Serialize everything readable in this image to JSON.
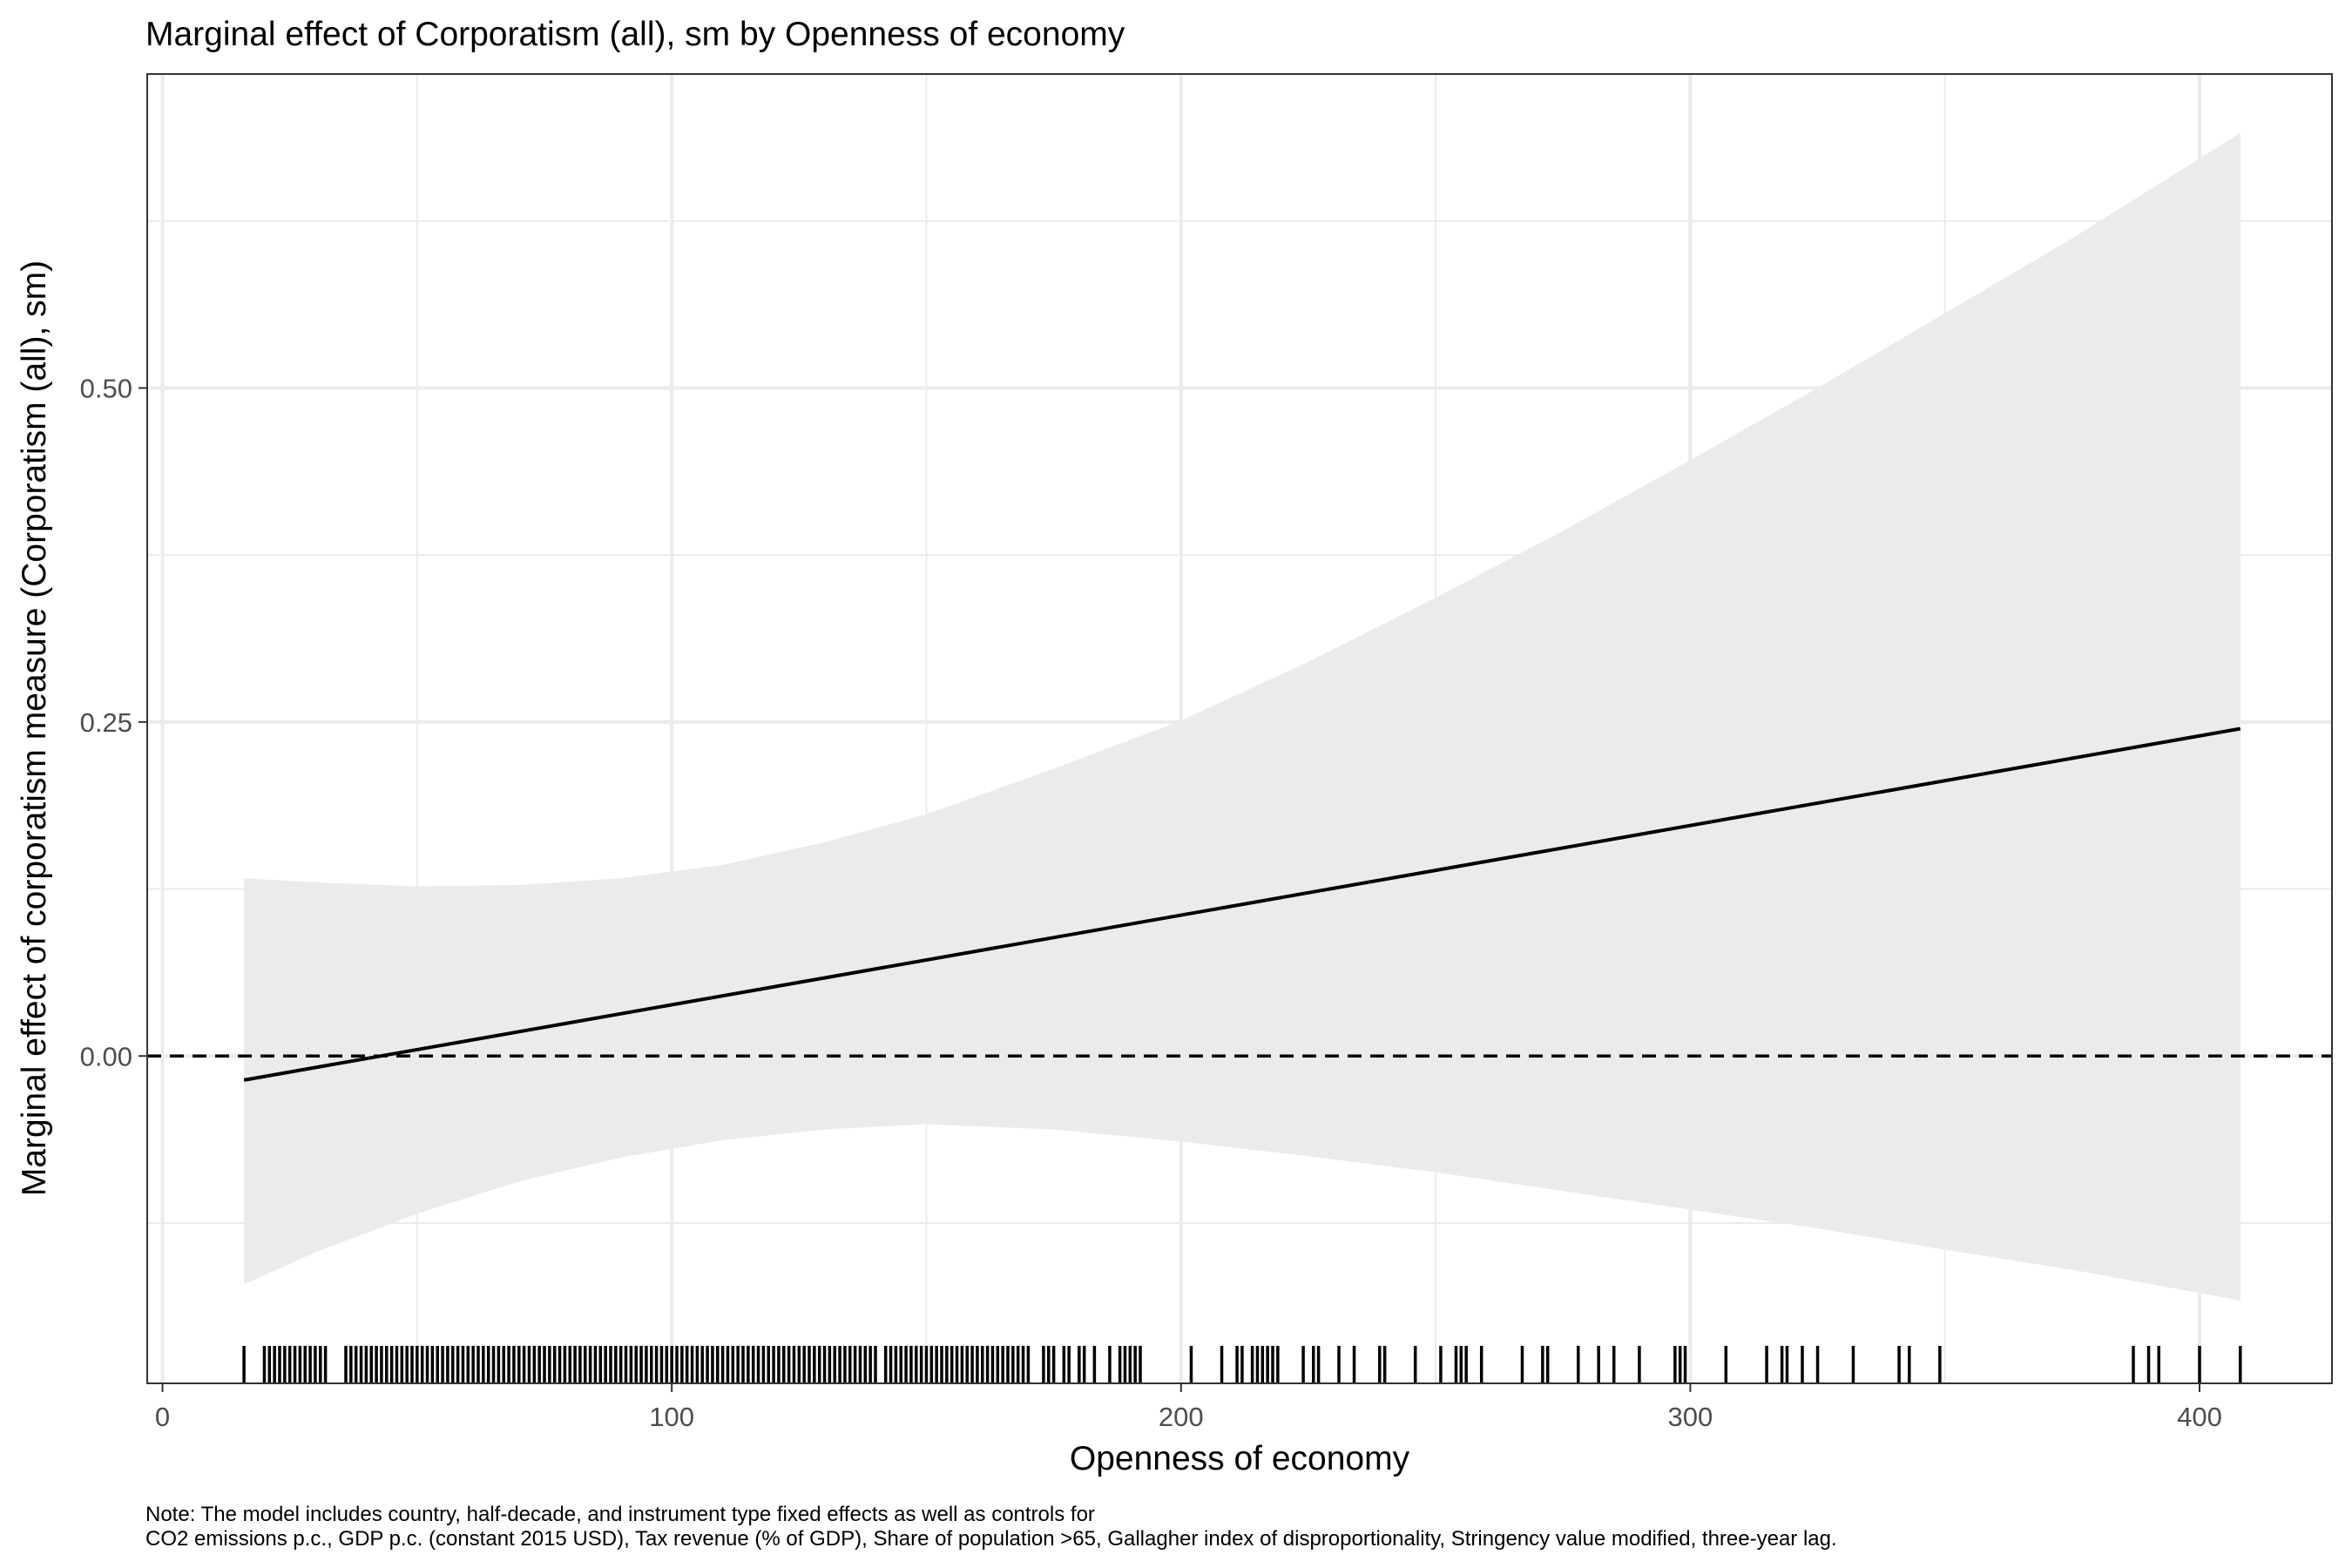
{
  "chart_data": {
    "type": "line",
    "title": "Marginal effect of Corporatism (all), sm by Openness of economy",
    "xlabel": "Openness of economy",
    "ylabel": "Marginal effect of corporatism measure (Corporatism (all), sm)",
    "xlim": [
      -3,
      426
    ],
    "ylim": [
      -0.245,
      0.735
    ],
    "x_ticks": [
      0,
      100,
      200,
      300,
      400
    ],
    "x_tick_labels": [
      "0",
      "100",
      "200",
      "300",
      "400"
    ],
    "y_ticks": [
      0.0,
      0.25,
      0.5
    ],
    "y_tick_labels": [
      "0.00",
      "0.25",
      "0.50"
    ],
    "grid": true,
    "reference_line": {
      "y": 0,
      "style": "dashed"
    },
    "series": [
      {
        "x": [
          16,
          408
        ],
        "y": [
          -0.018,
          0.245
        ]
      }
    ],
    "confidence_band": {
      "x": [
        16,
        30,
        50,
        70,
        90,
        110,
        130,
        150,
        175,
        200,
        225,
        250,
        275,
        300,
        325,
        350,
        375,
        408
      ],
      "lower": [
        -0.171,
        -0.147,
        -0.118,
        -0.094,
        -0.076,
        -0.063,
        -0.055,
        -0.051,
        -0.055,
        -0.064,
        -0.075,
        -0.087,
        -0.101,
        -0.115,
        -0.129,
        -0.145,
        -0.16,
        -0.183
      ],
      "upper": [
        0.133,
        0.13,
        0.127,
        0.128,
        0.133,
        0.143,
        0.16,
        0.181,
        0.215,
        0.251,
        0.295,
        0.343,
        0.393,
        0.446,
        0.5,
        0.556,
        0.612,
        0.691
      ]
    },
    "rug_x": [
      16,
      20,
      21,
      22,
      23,
      24,
      25,
      26,
      27,
      28,
      29,
      30,
      31,
      32,
      36,
      37,
      38,
      39,
      40,
      41,
      42,
      43,
      44,
      45,
      46,
      47,
      48,
      49,
      50,
      51,
      52,
      53,
      54,
      55,
      56,
      57,
      58,
      59,
      60,
      61,
      62,
      63,
      64,
      65,
      66,
      67,
      68,
      69,
      70,
      71,
      72,
      73,
      74,
      75,
      76,
      77,
      78,
      79,
      80,
      81,
      82,
      83,
      84,
      85,
      86,
      87,
      88,
      89,
      90,
      91,
      92,
      93,
      94,
      95,
      96,
      97,
      98,
      99,
      100,
      101,
      102,
      103,
      104,
      105,
      106,
      107,
      108,
      109,
      110,
      111,
      112,
      113,
      114,
      115,
      116,
      117,
      118,
      119,
      120,
      121,
      122,
      123,
      124,
      125,
      126,
      127,
      128,
      129,
      130,
      131,
      132,
      133,
      134,
      135,
      136,
      137,
      138,
      139,
      140,
      142,
      143,
      144,
      145,
      146,
      147,
      148,
      149,
      150,
      151,
      152,
      153,
      154,
      155,
      156,
      157,
      158,
      159,
      160,
      161,
      162,
      163,
      164,
      165,
      166,
      167,
      168,
      169,
      170,
      173,
      174,
      175,
      177,
      178,
      180,
      181,
      183,
      186,
      188,
      189,
      190,
      191,
      192,
      202,
      208,
      211,
      212,
      214,
      215,
      216,
      217,
      218,
      219,
      224,
      226,
      227,
      231,
      234,
      239,
      240,
      246,
      251,
      254,
      255,
      256,
      259,
      267,
      271,
      272,
      278,
      282,
      285,
      290,
      297,
      298,
      299,
      307,
      315,
      318,
      319,
      322,
      325,
      332,
      341,
      343,
      349,
      387,
      390,
      392,
      400,
      408
    ]
  },
  "note": {
    "line1": "Note: The model includes country, half-decade, and instrument type fixed effects as well as controls for",
    "line2": "CO2 emissions p.c., GDP p.c. (constant 2015 USD), Tax revenue (% of GDP), Share of population >65, Gallagher index of disproportionality, Stringency value modified, three-year lag."
  },
  "colors": {
    "band": "#ebebeb",
    "line": "#000000",
    "grid": "#ebebeb",
    "panel_border": "#333333",
    "tick_label": "#4d4d4d"
  }
}
